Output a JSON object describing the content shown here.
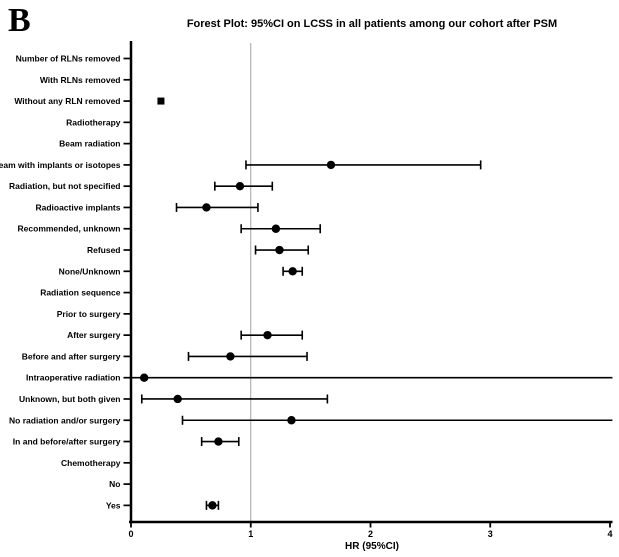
{
  "panel_label": "B",
  "chart_data": {
    "type": "scatter",
    "layout": "forest-plot",
    "title": "Forest Plot: 95%CI on LCSS in all patients among our cohort after PSM",
    "xlabel": "HR (95%CI)",
    "xlim": [
      0,
      4
    ],
    "xticks": [
      0,
      1,
      2,
      3,
      4
    ],
    "reference_line_x": 1,
    "grid": false,
    "colors": {
      "marker": "#000000",
      "axis": "#000000",
      "reference_line": "#a3a3a3"
    },
    "rows": [
      {
        "label": "Number of RLNs removed",
        "hr": null,
        "lo": null,
        "hi": null
      },
      {
        "label": "With RLNs removed",
        "hr": null,
        "lo": null,
        "hi": null
      },
      {
        "label": "Without any RLN removed",
        "hr": 0.25,
        "lo": 0.23,
        "hi": 0.27,
        "marker": "square",
        "lo_cap": false,
        "hi_cap": false
      },
      {
        "label": "Radiotherapy",
        "hr": null,
        "lo": null,
        "hi": null
      },
      {
        "label": "Beam radiation",
        "hr": null,
        "lo": null,
        "hi": null
      },
      {
        "label": "Beam with implants or isotopes",
        "hr": 1.67,
        "lo": 0.96,
        "hi": 2.92
      },
      {
        "label": "Radiation, but not specified",
        "hr": 0.91,
        "lo": 0.7,
        "hi": 1.18
      },
      {
        "label": "Radioactive implants",
        "hr": 0.63,
        "lo": 0.38,
        "hi": 1.06
      },
      {
        "label": "Recommended, unknown",
        "hr": 1.21,
        "lo": 0.92,
        "hi": 1.58
      },
      {
        "label": "Refused",
        "hr": 1.24,
        "lo": 1.04,
        "hi": 1.48
      },
      {
        "label": "None/Unknown",
        "hr": 1.35,
        "lo": 1.27,
        "hi": 1.43
      },
      {
        "label": "Radiation sequence",
        "hr": null,
        "lo": null,
        "hi": null
      },
      {
        "label": "Prior to surgery",
        "hr": null,
        "lo": null,
        "hi": null
      },
      {
        "label": "After surgery",
        "hr": 1.14,
        "lo": 0.92,
        "hi": 1.43
      },
      {
        "label": "Before and after surgery",
        "hr": 0.83,
        "lo": 0.48,
        "hi": 1.47
      },
      {
        "label": "Intraoperative radiation",
        "hr": 0.11,
        "lo": 0.0,
        "hi": 4.02,
        "lo_cap": false,
        "hi_cap": false
      },
      {
        "label": "Unknown, but both given",
        "hr": 0.39,
        "lo": 0.09,
        "hi": 1.64
      },
      {
        "label": "No radiation and/or surgery",
        "hr": 1.34,
        "lo": 0.43,
        "hi": 4.02,
        "hi_cap": false
      },
      {
        "label": "In and before/after surgery",
        "hr": 0.73,
        "lo": 0.59,
        "hi": 0.9
      },
      {
        "label": "Chemotherapy",
        "hr": null,
        "lo": null,
        "hi": null
      },
      {
        "label": "No",
        "hr": null,
        "lo": null,
        "hi": null
      },
      {
        "label": "Yes",
        "hr": 0.68,
        "lo": 0.63,
        "hi": 0.73
      }
    ]
  }
}
